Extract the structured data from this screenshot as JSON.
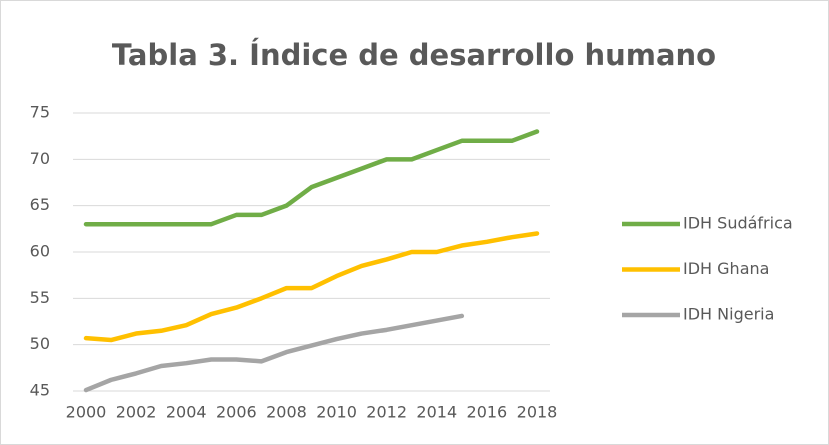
{
  "chart_data": {
    "type": "line",
    "title": "Tabla 3. Índice de desarrollo humano",
    "x": [
      2000,
      2001,
      2002,
      2003,
      2004,
      2005,
      2006,
      2007,
      2008,
      2009,
      2010,
      2011,
      2012,
      2013,
      2014,
      2015,
      2016,
      2017,
      2018
    ],
    "xlim": [
      2000,
      2018
    ],
    "xticks": [
      2000,
      2002,
      2004,
      2006,
      2008,
      2010,
      2012,
      2014,
      2016,
      2018
    ],
    "ylim": [
      45,
      75
    ],
    "yticks": [
      45,
      50,
      55,
      60,
      65,
      70,
      75
    ],
    "grid": true,
    "legend": "right",
    "series": [
      {
        "name": "IDH Sudáfrica",
        "color": "#70ad47",
        "values": [
          63,
          63,
          63,
          63,
          63,
          63,
          64,
          64,
          65,
          67,
          68,
          69,
          70,
          70,
          71,
          72,
          72,
          72,
          73
        ]
      },
      {
        "name": "IDH Ghana",
        "color": "#ffc000",
        "values": [
          50.7,
          50.5,
          51.2,
          51.5,
          52.1,
          53.3,
          54,
          55,
          56.1,
          56.1,
          57.4,
          58.5,
          59.2,
          60,
          60,
          60.7,
          61.1,
          61.6,
          62
        ]
      },
      {
        "name": "IDH Nigeria",
        "color": "#a5a5a5",
        "values": [
          45.1,
          46.2,
          46.9,
          47.7,
          48,
          48.4,
          48.4,
          48.2,
          49.2,
          49.9,
          50.6,
          51.2,
          51.6,
          52.1,
          52.6,
          53.1,
          null,
          null,
          null
        ]
      }
    ]
  }
}
